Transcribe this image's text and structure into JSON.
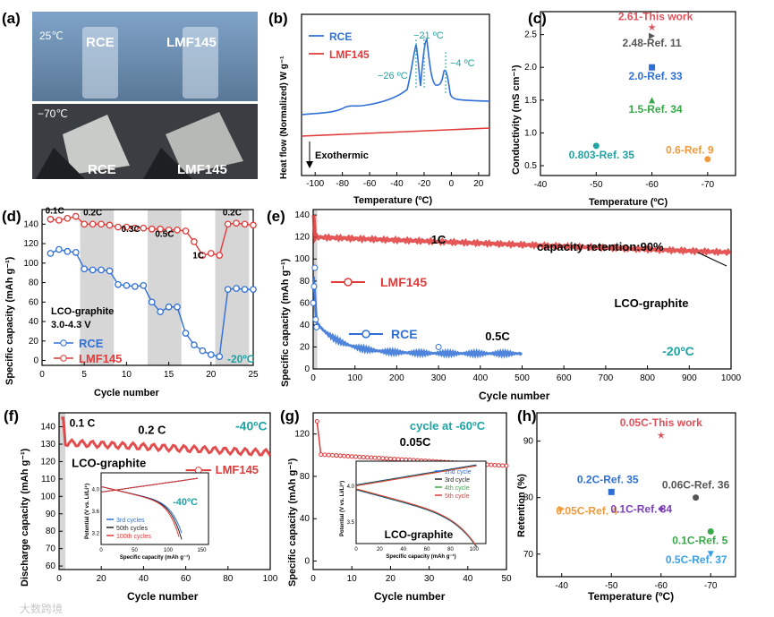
{
  "colors": {
    "red": "#e03a3a",
    "blue": "#2f6fd6",
    "teal": "#1fa3a3",
    "black": "#222222",
    "green": "#39a84a",
    "purple": "#7d3fb8",
    "orange": "#ef9a3c",
    "grey": "#555555",
    "pink": "#e0505a",
    "gray_band": "#d6d6d6",
    "sky": "#3aa0e6"
  },
  "panel_a": {
    "label": "(a)",
    "top_temp": "25℃",
    "bottom_temp": "−70℃",
    "top_left": "RCE",
    "top_right": "LMF145",
    "bottom_left": "RCE",
    "bottom_right": "LMF145"
  },
  "panel_b": {
    "label": "(b)",
    "ylabel": "Heat flow (Normalized) W g⁻¹",
    "xlabel": "Temperature (ºC)",
    "xticks": [
      "-100",
      "-80",
      "-60",
      "-40",
      "-20",
      "0",
      "20"
    ],
    "legend": [
      "RCE",
      "LMF145"
    ],
    "ann": [
      "−26 ºC",
      "−21 ºC",
      "−4 ºC"
    ],
    "exo": "Exothermic"
  },
  "panel_c": {
    "label": "(c)",
    "ylabel": "Conductivity (mS cm⁻¹)",
    "xlabel": "Temperature (ºC)",
    "xticks": [
      "-40",
      "-50",
      "-60",
      "-70"
    ],
    "yticks": [
      "0.5",
      "1.0",
      "1.5",
      "2.0",
      "2.5"
    ],
    "points": [
      {
        "label": "2.61-This work",
        "x": -60,
        "y": 2.61,
        "color": "#e0505a",
        "marker": "star"
      },
      {
        "label": "2.48-Ref. 11",
        "x": -60,
        "y": 2.48,
        "color": "#555555",
        "marker": "tri-right"
      },
      {
        "label": "2.0-Ref. 33",
        "x": -60,
        "y": 2.0,
        "color": "#2f6fd6",
        "marker": "square"
      },
      {
        "label": "1.5-Ref. 34",
        "x": -60,
        "y": 1.5,
        "color": "#39a84a",
        "marker": "tri-up"
      },
      {
        "label": "0.803-Ref. 35",
        "x": -50,
        "y": 0.803,
        "color": "#1fa3a3",
        "marker": "circle"
      },
      {
        "label": "0.6-Ref. 9",
        "x": -70,
        "y": 0.6,
        "color": "#ef9a3c",
        "marker": "circle"
      }
    ]
  },
  "panel_d": {
    "label": "(d)",
    "ylabel": "Specific capacity (mAh g⁻¹)",
    "xlabel": "Cycle number",
    "xticks": [
      "0",
      "5",
      "10",
      "15",
      "20",
      "25"
    ],
    "yticks": [
      "0",
      "20",
      "40",
      "60",
      "80",
      "100",
      "120",
      "140"
    ],
    "rates": [
      "0.1C",
      "0.2C",
      "0.3C",
      "0.5C",
      "1C",
      "0.2C"
    ],
    "text1": "LCO-graphite",
    "text2": "3.0-4.3 V",
    "legend": [
      "RCE",
      "LMF145"
    ],
    "temp": "-20ºC",
    "lmf": [
      145,
      144,
      146,
      148,
      140,
      140,
      140,
      139,
      137,
      137,
      136,
      136,
      135,
      135,
      134,
      134,
      133,
      122,
      108,
      110,
      108,
      140,
      141,
      140,
      139
    ],
    "rce": [
      110,
      114,
      112,
      111,
      94,
      93,
      93,
      92,
      78,
      77,
      76,
      77,
      60,
      50,
      55,
      55,
      28,
      16,
      10,
      6,
      4,
      73,
      74,
      73,
      73
    ]
  },
  "panel_e": {
    "label": "(e)",
    "ylabel": "Specific capacity (mAh g⁻¹)",
    "xlabel": "Cycle number",
    "xticks": [
      "0",
      "100",
      "200",
      "300",
      "400",
      "500",
      "600",
      "700",
      "800",
      "900",
      "1000"
    ],
    "yticks": [
      "0",
      "20",
      "40",
      "60",
      "80",
      "100",
      "120",
      "140"
    ],
    "rate_lmf": "1C",
    "rate_rce": "0.5C",
    "retention": "capacity retention:90%",
    "legend": [
      "LMF145",
      "RCE"
    ],
    "system": "LCO-graphite",
    "temp": "-20ºC"
  },
  "panel_f": {
    "label": "(f)",
    "ylabel": "Discharge capacity (mAh g⁻¹)",
    "xlabel": "Cycle number",
    "xticks": [
      "0",
      "20",
      "40",
      "60",
      "80",
      "100"
    ],
    "yticks": [
      "60",
      "70",
      "80",
      "90",
      "100",
      "110",
      "120",
      "130",
      "140"
    ],
    "rate1": "0.1 C",
    "rate2": "0.2 C",
    "temp": "-40ºC",
    "system": "LCO-graphite",
    "legend": "LMF145",
    "inset": {
      "ylabel": "Potential (V vs. Li/Li⁺)",
      "xlabel": "Specific capacity (mAh g⁻¹)",
      "xticks": [
        "0",
        "50",
        "100",
        "150"
      ],
      "yticks": [
        "3.2",
        "3.6",
        "4.0"
      ],
      "legend": [
        "3rd cycles",
        "50th cycles",
        "100th cycles"
      ],
      "temp": "-40ºC"
    }
  },
  "panel_g": {
    "label": "(g)",
    "ylabel": "Specific capacity (mAh g⁻¹)",
    "xlabel": "Cycle number",
    "xticks": [
      "0",
      "10",
      "20",
      "30",
      "40",
      "50"
    ],
    "yticks": [
      "0",
      "40",
      "80",
      "120"
    ],
    "title": "cycle at -60ºC",
    "rate": "0.05C",
    "system": "LCO-graphite",
    "inset": {
      "ylabel": "Potential (V vs. Li/Li⁺)",
      "xlabel": "Specific capacity (mAh g⁻¹)",
      "xticks": [
        "0",
        "20",
        "40",
        "60",
        "80",
        "100"
      ],
      "yticks": [
        "3.5",
        "4.0"
      ],
      "legend": [
        "2nd cycle",
        "3rd cycle",
        "4th cycle",
        "5th cycle"
      ]
    }
  },
  "panel_h": {
    "label": "(h)",
    "ylabel": "Retention (%)",
    "xlabel": "Temperature (ºC)",
    "xticks": [
      "-40",
      "-50",
      "-60",
      "-70"
    ],
    "yticks": [
      "70",
      "80",
      "90"
    ],
    "points": [
      {
        "label": "0.05C-This work",
        "x": -60,
        "y": 91,
        "color": "#e0505a",
        "marker": "star"
      },
      {
        "label": "0.2C-Ref. 35",
        "x": -50,
        "y": 81,
        "color": "#2f6fd6",
        "marker": "square"
      },
      {
        "label": "0.06C-Ref. 36",
        "x": -67,
        "y": 80,
        "color": "#555555",
        "marker": "circle"
      },
      {
        "label": "0.05C-Ref. 4",
        "x": -40,
        "y": 78,
        "color": "#ef9a3c",
        "marker": "tri-right"
      },
      {
        "label": "0.1C-Ref. 34",
        "x": -60,
        "y": 78,
        "color": "#7d3fb8",
        "marker": "diamond"
      },
      {
        "label": "0.1C-Ref. 5",
        "x": -70,
        "y": 74,
        "color": "#39a84a",
        "marker": "circle"
      },
      {
        "label": "0.5C-Ref. 37",
        "x": -70,
        "y": 70,
        "color": "#3aa0e6",
        "marker": "tri-down"
      }
    ]
  },
  "watermark": "大数跨境"
}
